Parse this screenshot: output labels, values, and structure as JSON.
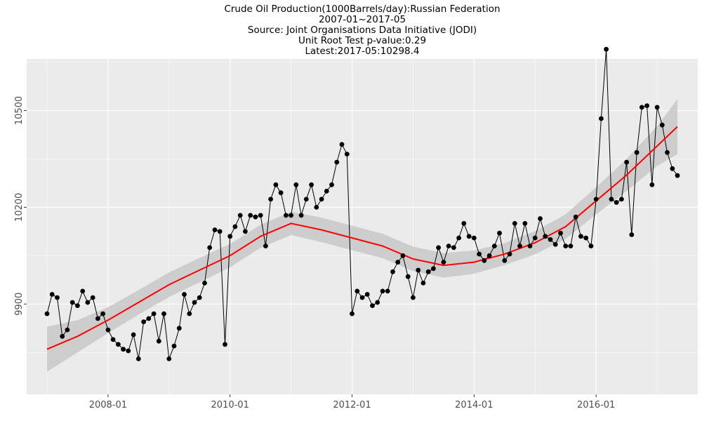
{
  "titles": [
    "Crude Oil Production(1000Barrels/day):Russian Federation",
    "2007-01~2017-05",
    "Source: Joint Organisations Data Initiative (JODI)",
    "Unit Root Test p-value:0.29",
    "Latest:2017-05:10298.4"
  ],
  "chart_data": {
    "type": "line",
    "x_start": "2007-01",
    "x_end": "2017-05",
    "xlim": [
      "2006-09",
      "2017-09"
    ],
    "ylim": [
      9620,
      10660
    ],
    "x_ticks": [
      "2008-01",
      "2010-01",
      "2012-01",
      "2014-01",
      "2016-01"
    ],
    "y_ticks": [
      9900,
      10200,
      10500
    ],
    "y_tick_labels": [
      "9900",
      "10200",
      "10500"
    ],
    "grid": true,
    "legend": "none",
    "colors": {
      "panel": "#ebebeb",
      "grid": "#ffffff",
      "points": "#000000",
      "line": "#000000",
      "smooth": "#ff0000",
      "band": "#c8c8c8"
    },
    "series": [
      {
        "values": [
          9870,
          9930,
          9920,
          9800,
          9820,
          9905,
          9895,
          9940,
          9905,
          9920,
          9855,
          9870,
          9820,
          9790,
          9775,
          9760,
          9755,
          9805,
          9730,
          9845,
          9855,
          9870,
          9785,
          9870,
          9730,
          9770,
          9825,
          9930,
          9870,
          9905,
          9920,
          9965,
          10075,
          10130,
          10125,
          9775,
          10110,
          10140,
          10175,
          10125,
          10175,
          10170,
          10175,
          10080,
          10225,
          10270,
          10245,
          10175,
          10175,
          10270,
          10175,
          10225,
          10270,
          10200,
          10225,
          10250,
          10270,
          10340,
          10395,
          10365,
          9870,
          9940,
          9920,
          9930,
          9895,
          9905,
          9940,
          9940,
          10000,
          10030,
          10050,
          9985,
          9920,
          10005,
          9965,
          10000,
          10010,
          10075,
          10030,
          10080,
          10075,
          10105,
          10150,
          10110,
          10105,
          10055,
          10035,
          10050,
          10080,
          10120,
          10035,
          10055,
          10150,
          10080,
          10150,
          10080,
          10105,
          10165,
          10110,
          10100,
          10085,
          10120,
          10080,
          10080,
          10170,
          10110,
          10105,
          10080,
          10225,
          10475,
          10690,
          10225,
          10215,
          10225,
          10340,
          10115,
          10370,
          10510,
          10515,
          10270,
          10510,
          10455,
          10370,
          10320,
          10298.4
        ]
      }
    ],
    "smooth_fit": {
      "x": [
        "2007-01",
        "2007-07",
        "2008-01",
        "2008-07",
        "2009-01",
        "2009-07",
        "2010-01",
        "2010-07",
        "2011-01",
        "2011-07",
        "2012-01",
        "2012-07",
        "2013-01",
        "2013-07",
        "2014-01",
        "2014-07",
        "2015-01",
        "2015-07",
        "2016-01",
        "2016-07",
        "2017-01",
        "2017-05"
      ],
      "y": [
        9760,
        9800,
        9850,
        9905,
        9960,
        10005,
        10050,
        10110,
        10150,
        10130,
        10105,
        10080,
        10040,
        10020,
        10030,
        10055,
        10090,
        10140,
        10220,
        10300,
        10390,
        10450
      ],
      "band_halfwidth": [
        70,
        50,
        40,
        38,
        38,
        38,
        36,
        36,
        36,
        38,
        38,
        38,
        38,
        38,
        36,
        34,
        36,
        38,
        42,
        50,
        62,
        85
      ]
    }
  }
}
